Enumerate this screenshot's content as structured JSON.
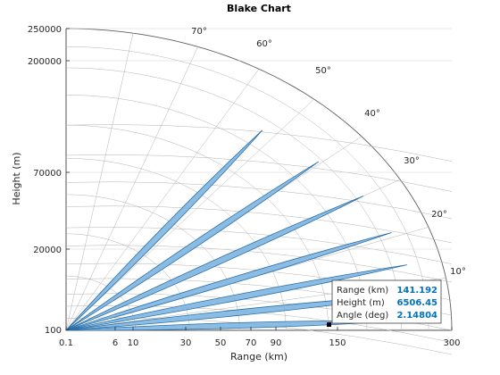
{
  "chart_data": {
    "type": "area",
    "title": "Blake Chart",
    "xlabel": "Range (km)",
    "ylabel": "Height (m)",
    "x_ticks": [
      "0.1",
      "6",
      "10",
      "30",
      "50",
      "70",
      "90",
      "150",
      "300"
    ],
    "y_ticks": [
      "100",
      "20000",
      "70000",
      "200000",
      "250000"
    ],
    "angle_ticks": [
      "10°",
      "20°",
      "30°",
      "40°",
      "50°",
      "60°",
      "70°"
    ],
    "xlim": [
      0.1,
      300
    ],
    "ylim": [
      100,
      250000
    ],
    "grid": true,
    "lobes": [
      {
        "angle_deg": 2.1,
        "max_range_km": 141
      },
      {
        "angle_deg": 7.5,
        "max_range_km": 187
      },
      {
        "angle_deg": 13.8,
        "max_range_km": 179
      },
      {
        "angle_deg": 21.0,
        "max_range_km": 173
      },
      {
        "angle_deg": 30.0,
        "max_range_km": 160
      },
      {
        "angle_deg": 40.5,
        "max_range_km": 135
      },
      {
        "angle_deg": 52.5,
        "max_range_km": 117
      }
    ],
    "colors": {
      "lobe_fill": "#7bb4e0",
      "lobe_edge": "#2b6fa8",
      "grid": "#b3b3b3",
      "tip_value": "#0072BD"
    },
    "datatip": {
      "rows": [
        {
          "label": "Range (km)",
          "value": "141.192"
        },
        {
          "label": "Height (m)",
          "value": "6506.45"
        },
        {
          "label": "Angle (deg)",
          "value": "2.14804"
        }
      ]
    }
  }
}
